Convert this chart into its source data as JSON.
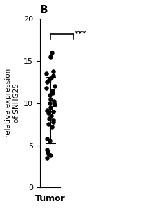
{
  "title": "B",
  "ylabel": "relative expression\nof SNHG25",
  "xlabel": "Tumor",
  "ylim": [
    0,
    20
  ],
  "yticks": [
    0,
    5,
    10,
    15,
    20
  ],
  "mean": 9.0,
  "sd_upper": 13.0,
  "sd_lower": 5.2,
  "significance": "***",
  "dot_color": "#000000",
  "dot_size": 22,
  "tumor_points": [
    16.0,
    15.5,
    13.8,
    13.5,
    13.3,
    13.0,
    12.8,
    12.5,
    12.0,
    11.8,
    11.5,
    11.2,
    11.0,
    10.5,
    10.2,
    10.0,
    9.8,
    9.5,
    9.2,
    9.0,
    8.8,
    8.5,
    8.2,
    8.0,
    7.8,
    7.5,
    7.2,
    5.8,
    5.5,
    4.5,
    4.2,
    4.0,
    3.8,
    3.5
  ],
  "background_color": "#ffffff"
}
